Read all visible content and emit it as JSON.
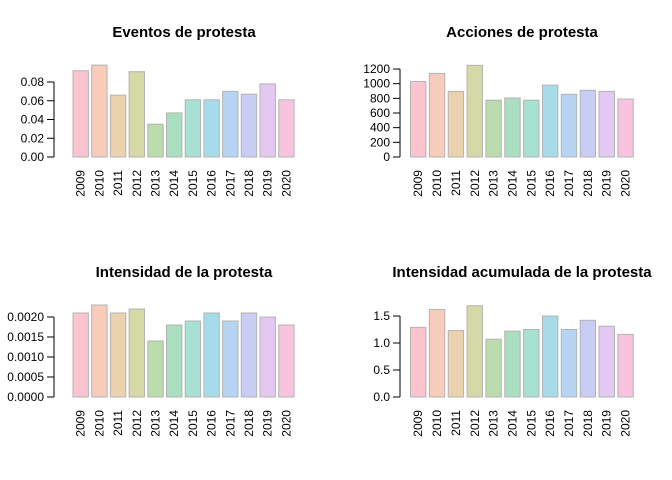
{
  "figure": {
    "background": "#ffffff",
    "text_color": "#000000",
    "bar_border_color": "#b3b3b3",
    "bar_palette": [
      "#FBC4D1",
      "#F7CCBA",
      "#EBD2AE",
      "#D4D9A6",
      "#BCDCAE",
      "#AADEC0",
      "#A7E1D1",
      "#A6DCE9",
      "#B5D5F2",
      "#C9CDF4",
      "#E3C8F1",
      "#F8C3DF"
    ]
  },
  "chart_data": [
    {
      "type": "bar",
      "title": "Eventos de protesta",
      "categories": [
        "2009",
        "2010",
        "2011",
        "2012",
        "2013",
        "2014",
        "2015",
        "2016",
        "2017",
        "2018",
        "2019",
        "2020"
      ],
      "values": [
        0.092,
        0.098,
        0.066,
        0.091,
        0.035,
        0.047,
        0.061,
        0.061,
        0.07,
        0.067,
        0.078,
        0.061
      ],
      "xlabel": "",
      "ylabel": "",
      "ylim": [
        0,
        0.098
      ],
      "grid": false,
      "legend": false,
      "y_tick_labels": [
        "0.00",
        "0.02",
        "0.04",
        "0.06",
        "0.08"
      ],
      "y_tick_values": [
        0,
        0.02,
        0.04,
        0.06,
        0.08
      ]
    },
    {
      "type": "bar",
      "title": "Acciones de protesta",
      "categories": [
        "2009",
        "2010",
        "2011",
        "2012",
        "2013",
        "2014",
        "2015",
        "2016",
        "2017",
        "2018",
        "2019",
        "2020"
      ],
      "values": [
        1030,
        1140,
        895,
        1250,
        775,
        805,
        775,
        980,
        855,
        910,
        895,
        790
      ],
      "xlabel": "",
      "ylabel": "",
      "ylim": [
        0,
        1250
      ],
      "grid": false,
      "legend": false,
      "y_tick_labels": [
        "0",
        "200",
        "400",
        "600",
        "800",
        "1000",
        "1200"
      ],
      "y_tick_values": [
        0,
        200,
        400,
        600,
        800,
        1000,
        1200
      ]
    },
    {
      "type": "bar",
      "title": "Intensidad de la protesta",
      "categories": [
        "2009",
        "2010",
        "2011",
        "2012",
        "2013",
        "2014",
        "2015",
        "2016",
        "2017",
        "2018",
        "2019",
        "2020"
      ],
      "values": [
        0.0021,
        0.0023,
        0.0021,
        0.0022,
        0.0014,
        0.0018,
        0.0019,
        0.0021,
        0.0019,
        0.0021,
        0.002,
        0.0018
      ],
      "xlabel": "",
      "ylabel": "",
      "ylim": [
        0,
        0.0023
      ],
      "grid": false,
      "legend": false,
      "y_tick_labels": [
        "0.0000",
        "0.0005",
        "0.0010",
        "0.0015",
        "0.0020"
      ],
      "y_tick_values": [
        0,
        0.0005,
        0.001,
        0.0015,
        0.002
      ]
    },
    {
      "type": "bar",
      "title": "Intensidad acumulada de la protesta",
      "categories": [
        "2009",
        "2010",
        "2011",
        "2012",
        "2013",
        "2014",
        "2015",
        "2016",
        "2017",
        "2018",
        "2019",
        "2020"
      ],
      "values": [
        1.29,
        1.62,
        1.23,
        1.69,
        1.07,
        1.22,
        1.25,
        1.5,
        1.25,
        1.42,
        1.31,
        1.16
      ],
      "xlabel": "",
      "ylabel": "",
      "ylim": [
        0,
        1.69
      ],
      "grid": false,
      "legend": false,
      "y_tick_labels": [
        "0.0",
        "0.5",
        "1.0",
        "1.5"
      ],
      "y_tick_values": [
        0,
        0.5,
        1.0,
        1.5
      ]
    }
  ]
}
